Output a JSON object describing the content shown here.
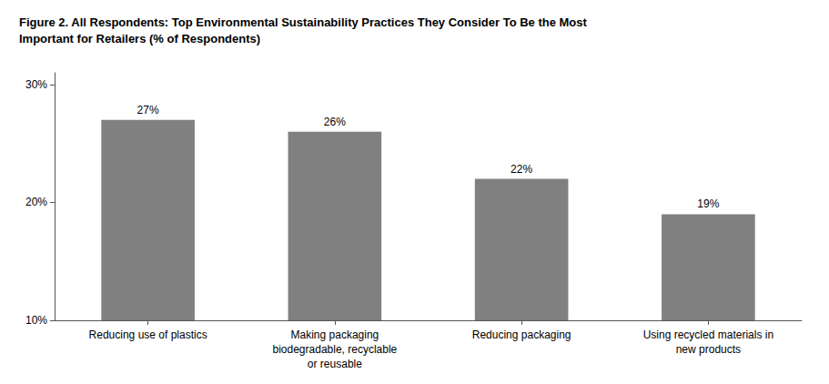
{
  "chart_data": {
    "type": "bar",
    "title": "Figure 2. All Respondents: Top Environmental Sustainability Practices They Consider To Be the Most\nImportant for Retailers (% of Respondents)",
    "categories": [
      "Reducing use of plastics",
      "Making packaging\nbiodegradable, recyclable\nor reusable",
      "Reducing packaging",
      "Using recycled materials in\nnew products"
    ],
    "values": [
      27,
      26,
      22,
      19
    ],
    "value_labels": [
      "27%",
      "26%",
      "22%",
      "19%"
    ],
    "data_labels": true,
    "color": "#808080",
    "ylim": [
      10,
      31
    ],
    "yticks": [
      {
        "value": 10,
        "label": "10%"
      },
      {
        "value": 20,
        "label": "20%"
      },
      {
        "value": 30,
        "label": "30%"
      }
    ],
    "grid": false
  }
}
